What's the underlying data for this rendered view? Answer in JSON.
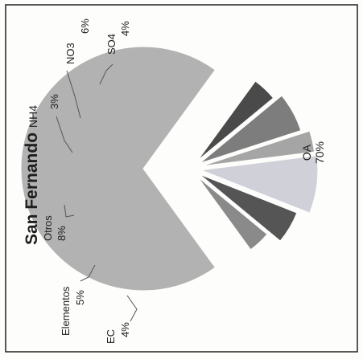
{
  "chart_data": {
    "type": "pie",
    "title": "San Fernando",
    "title_suffix": "NH4",
    "orientation": "rotated 90° counter-clockwise",
    "slices": [
      {
        "label": "OA",
        "value": 70,
        "display": "70%",
        "color": "#b2b2b2"
      },
      {
        "label": "SO4",
        "value": 4,
        "display": "4%",
        "color": "#4a4a4a"
      },
      {
        "label": "NO3",
        "value": 6,
        "display": "6%",
        "color": "#7d7d7d"
      },
      {
        "label": "",
        "value": 3,
        "display": "3%",
        "color": "#a5a5a5"
      },
      {
        "label": "Otros",
        "value": 8,
        "display": "8%",
        "color": "#cfd0d8"
      },
      {
        "label": "Elementos",
        "value": 5,
        "display": "5%",
        "color": "#555555"
      },
      {
        "label": "EC",
        "value": 4,
        "display": "4%",
        "color": "#8a8a8a"
      }
    ]
  }
}
